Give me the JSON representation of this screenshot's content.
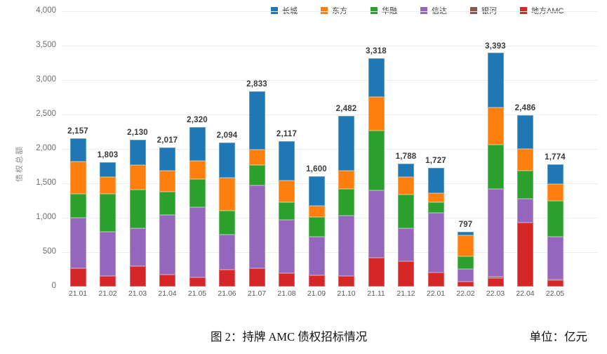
{
  "figure": {
    "caption": "图 2：持牌 AMC 债权招标情况",
    "unit_label": "单位：亿元"
  },
  "chart_data": {
    "type": "bar",
    "stacked": true,
    "title": "图 2：持牌 AMC 债权招标情况",
    "unit": "亿元",
    "ylabel": "债权总额",
    "xlabel": "",
    "ylim": [
      0,
      4000
    ],
    "ytick_step": 500,
    "grid": true,
    "legend_position": "top",
    "legend_order": [
      "长城",
      "东方",
      "华融",
      "信达",
      "银河",
      "地方AMC"
    ],
    "stack_order_bottom_to_top": [
      "地方AMC",
      "银河",
      "信达",
      "华融",
      "东方",
      "长城"
    ],
    "categories": [
      "21.01",
      "21.02",
      "21.03",
      "21.04",
      "21.05",
      "21.06",
      "21.07",
      "21.08",
      "21.09",
      "21.10",
      "21.11",
      "21.12",
      "22.01",
      "22.02",
      "22.03",
      "22.04",
      "22.05"
    ],
    "totals": [
      2157,
      1803,
      2130,
      2017,
      2320,
      2094,
      2833,
      2117,
      1600,
      2482,
      3318,
      1788,
      1727,
      797,
      3393,
      2486,
      1774
    ],
    "series": [
      {
        "name": "地方AMC",
        "color": "#d62728",
        "values": [
          268,
          153,
          296,
          176,
          133,
          245,
          268,
          191,
          166,
          156,
          415,
          370,
          201,
          74,
          122,
          931,
          92
        ]
      },
      {
        "name": "银河",
        "color": "#8c564b",
        "values": [
          0,
          0,
          0,
          0,
          0,
          0,
          0,
          0,
          0,
          0,
          0,
          0,
          0,
          0,
          20,
          0,
          15
        ]
      },
      {
        "name": "信达",
        "color": "#9467bd",
        "values": [
          731,
          643,
          551,
          867,
          1020,
          510,
          1201,
          781,
          555,
          877,
          985,
          476,
          867,
          184,
          1272,
          347,
          620
        ]
      },
      {
        "name": "华融",
        "color": "#2ca02c",
        "values": [
          347,
          551,
          561,
          330,
          408,
          347,
          296,
          255,
          286,
          381,
          864,
          487,
          153,
          181,
          649,
          408,
          517
        ]
      },
      {
        "name": "东方",
        "color": "#ff7f0e",
        "values": [
          469,
          245,
          357,
          306,
          262,
          476,
          221,
          316,
          169,
          271,
          487,
          261,
          136,
          306,
          541,
          316,
          242
        ]
      },
      {
        "name": "长城",
        "color": "#1f77b4",
        "values": [
          342,
          211,
          365,
          338,
          497,
          516,
          847,
          574,
          424,
          797,
          567,
          194,
          370,
          52,
          789,
          484,
          288
        ]
      }
    ]
  }
}
